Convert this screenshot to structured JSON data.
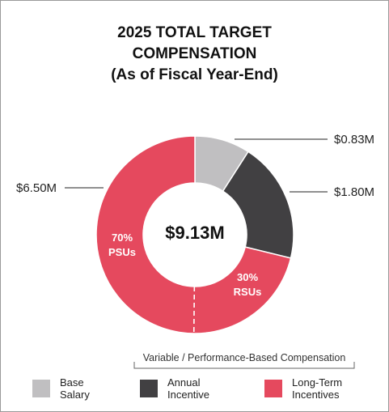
{
  "title": {
    "line1": "2025 TOTAL TARGET",
    "line2": "COMPENSATION",
    "line3": "(As of Fiscal Year-End)"
  },
  "chart_data": {
    "type": "pie",
    "variant": "donut",
    "center_label": "$9.13M",
    "slices": [
      {
        "label": "Base Salary",
        "value": 0.83,
        "value_label": "$0.83M",
        "color": "#c0bfc1"
      },
      {
        "label": "Annual Incentive",
        "value": 1.8,
        "value_label": "$1.80M",
        "color": "#414042"
      },
      {
        "label": "Long-Term Incentives",
        "value": 6.5,
        "value_label": "$6.50M",
        "color": "#e5495e"
      }
    ],
    "ltip_split": {
      "rsu_label_line1": "30%",
      "rsu_label_line2": "RSUs",
      "rsu_fraction": 0.3,
      "psu_label_line1": "70%",
      "psu_label_line2": "PSUs",
      "psu_fraction": 0.7
    },
    "bracket_label": "Variable / Performance-Based Compensation",
    "legend": {
      "base_line1": "Base",
      "base_line2": "Salary",
      "annual_line1": "Annual",
      "annual_line2": "Incentive",
      "lti_line1": "Long-Term",
      "lti_line2": "Incentives"
    }
  }
}
